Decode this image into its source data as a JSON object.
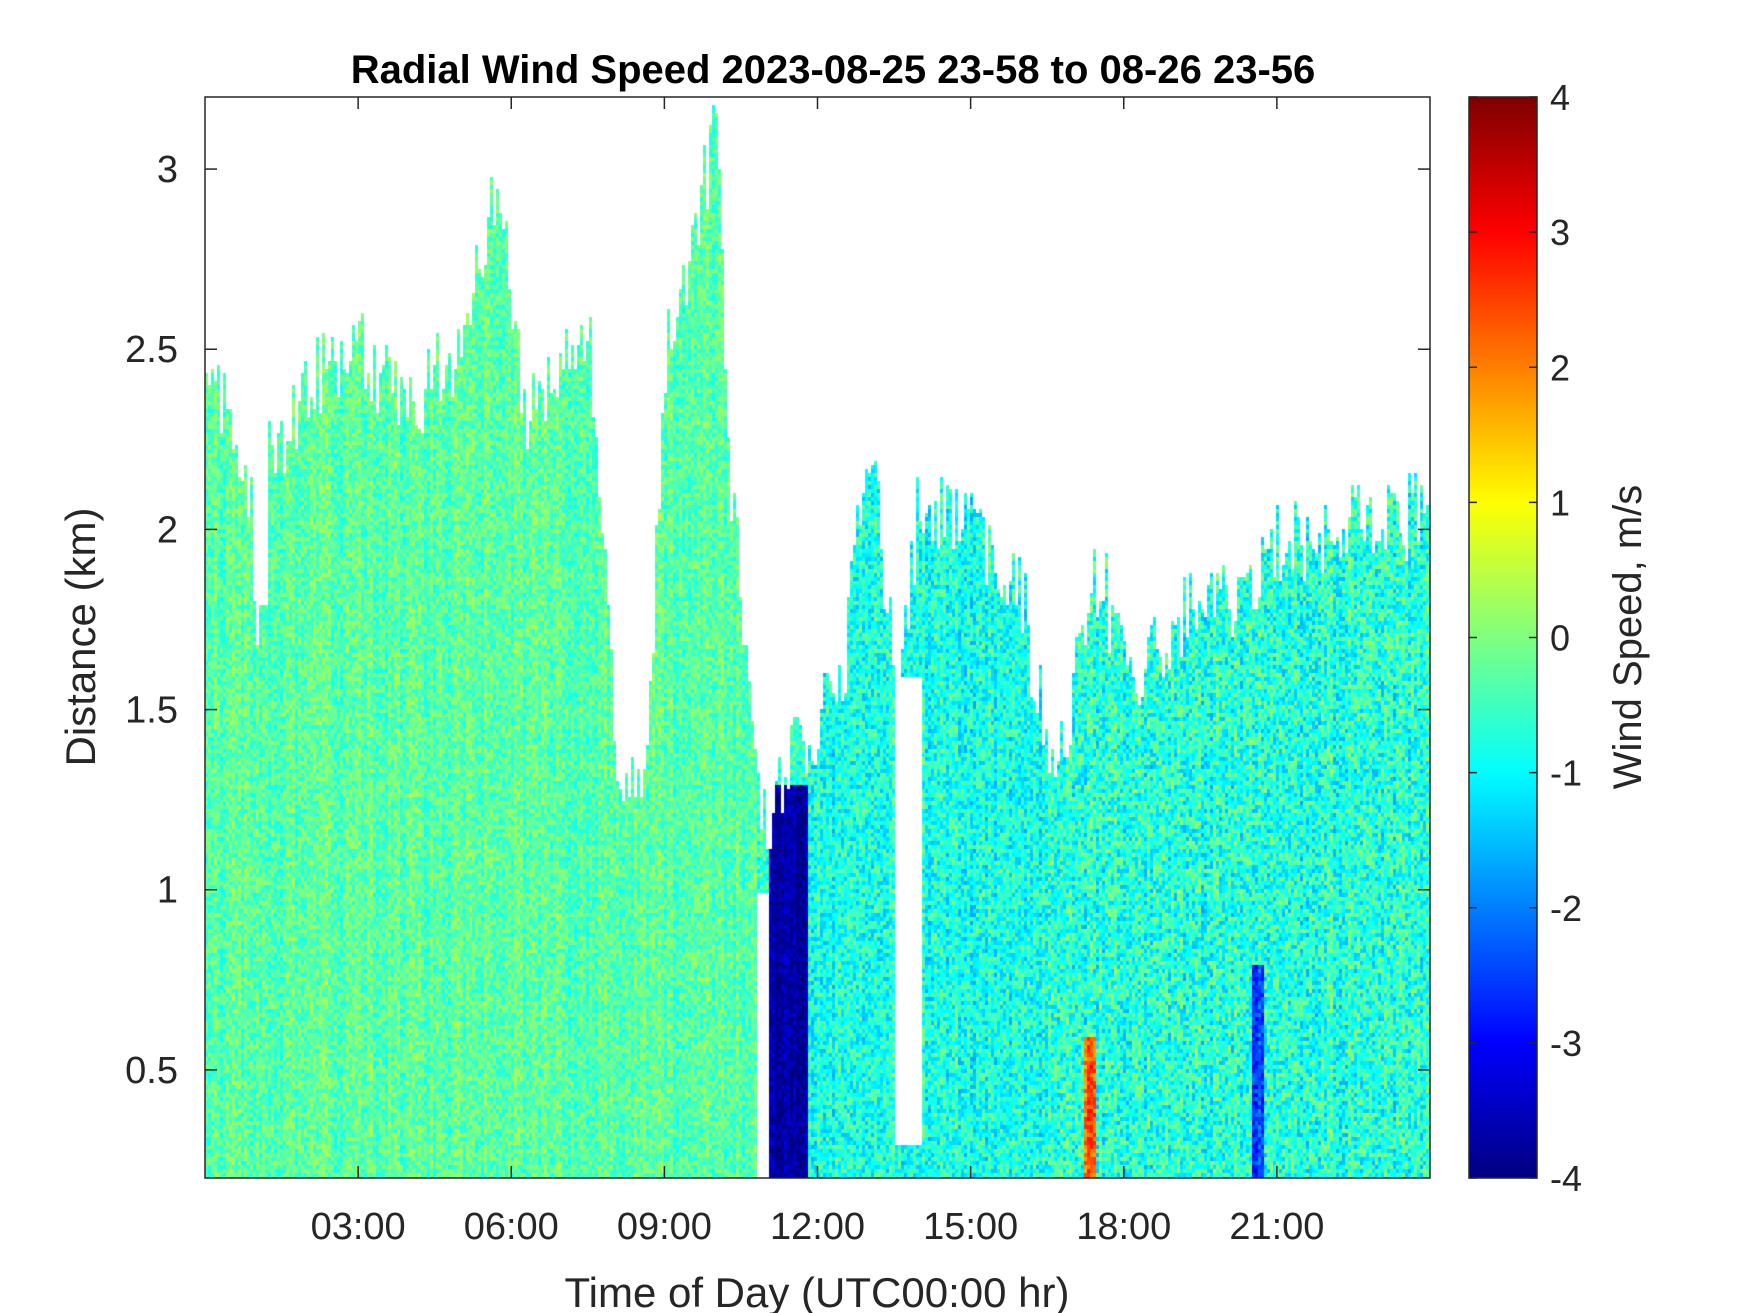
{
  "chart_data": {
    "type": "heatmap",
    "title": "Radial Wind Speed 2023-08-25 23-58 to 08-26 23-56",
    "xlabel": "Time of Day (UTC00:00 hr)",
    "ylabel": "Distance (km)",
    "colorbar_label": "Wind Speed, m/s",
    "xlim_hours": [
      0,
      24
    ],
    "ylim_km": [
      0.2,
      3.2
    ],
    "clim": [
      -4,
      4
    ],
    "colormap": "jet",
    "x_ticks": [
      {
        "value": 3,
        "label": "03:00"
      },
      {
        "value": 6,
        "label": "06:00"
      },
      {
        "value": 9,
        "label": "09:00"
      },
      {
        "value": 12,
        "label": "12:00"
      },
      {
        "value": 15,
        "label": "15:00"
      },
      {
        "value": 18,
        "label": "18:00"
      },
      {
        "value": 21,
        "label": "21:00"
      }
    ],
    "y_ticks": [
      {
        "value": 0.5,
        "label": "0.5"
      },
      {
        "value": 1,
        "label": "1"
      },
      {
        "value": 1.5,
        "label": "1.5"
      },
      {
        "value": 2,
        "label": "2"
      },
      {
        "value": 2.5,
        "label": "2.5"
      },
      {
        "value": 3,
        "label": "3"
      }
    ],
    "colorbar_ticks": [
      {
        "value": 4,
        "label": "4"
      },
      {
        "value": 3,
        "label": "3"
      },
      {
        "value": 2,
        "label": "2"
      },
      {
        "value": 1,
        "label": "1"
      },
      {
        "value": 0,
        "label": "0"
      },
      {
        "value": -1,
        "label": "-1"
      },
      {
        "value": -2,
        "label": "-2"
      },
      {
        "value": -3,
        "label": "-3"
      },
      {
        "value": -4,
        "label": "-4"
      }
    ],
    "data_top_km_by_hour": [
      {
        "hour": 0.0,
        "top": 2.4
      },
      {
        "hour": 0.5,
        "top": 2.3
      },
      {
        "hour": 0.8,
        "top": 2.2
      },
      {
        "hour": 1.0,
        "top": 1.8
      },
      {
        "hour": 1.2,
        "top": 2.2
      },
      {
        "hour": 2.0,
        "top": 2.4
      },
      {
        "hour": 3.0,
        "top": 2.5
      },
      {
        "hour": 4.0,
        "top": 2.35
      },
      {
        "hour": 5.0,
        "top": 2.5
      },
      {
        "hour": 5.8,
        "top": 3.0
      },
      {
        "hour": 6.2,
        "top": 2.3
      },
      {
        "hour": 7.0,
        "top": 2.5
      },
      {
        "hour": 7.5,
        "top": 2.6
      },
      {
        "hour": 8.0,
        "top": 1.4
      },
      {
        "hour": 8.6,
        "top": 1.3
      },
      {
        "hour": 9.0,
        "top": 2.5
      },
      {
        "hour": 9.5,
        "top": 2.8
      },
      {
        "hour": 10.0,
        "top": 3.1
      },
      {
        "hour": 10.3,
        "top": 2.1
      },
      {
        "hour": 10.8,
        "top": 1.3
      },
      {
        "hour": 11.0,
        "top": 1.2
      },
      {
        "hour": 11.8,
        "top": 1.45
      },
      {
        "hour": 12.1,
        "top": 1.5
      },
      {
        "hour": 12.5,
        "top": 1.6
      },
      {
        "hour": 13.0,
        "top": 2.3
      },
      {
        "hour": 13.5,
        "top": 1.6
      },
      {
        "hour": 14.0,
        "top": 2.1
      },
      {
        "hour": 15.0,
        "top": 2.0
      },
      {
        "hour": 16.0,
        "top": 1.8
      },
      {
        "hour": 16.6,
        "top": 1.3
      },
      {
        "hour": 17.5,
        "top": 1.9
      },
      {
        "hour": 18.0,
        "top": 1.6
      },
      {
        "hour": 19.0,
        "top": 1.75
      },
      {
        "hour": 20.0,
        "top": 1.8
      },
      {
        "hour": 21.0,
        "top": 1.95
      },
      {
        "hour": 22.0,
        "top": 2.0
      },
      {
        "hour": 24.0,
        "top": 2.05
      }
    ],
    "data_gaps": [
      {
        "hour_from": 1.0,
        "hour_to": 1.2,
        "km_from": 1.8,
        "km_to": 2.2
      },
      {
        "hour_from": 10.8,
        "hour_to": 11.0,
        "km_from": 0.2,
        "km_to": 1.0
      },
      {
        "hour_from": 13.5,
        "hour_to": 14.0,
        "km_from": 0.3,
        "km_to": 1.6
      }
    ],
    "value_regions": [
      {
        "hour_from": 0,
        "hour_to": 10.8,
        "km_from": 0.2,
        "km_to": 3.2,
        "mean": -0.3,
        "spread": 0.5
      },
      {
        "hour_from": 11.0,
        "hour_to": 11.8,
        "km_from": 0.2,
        "km_to": 1.3,
        "mean": -3.7,
        "spread": 0.4
      },
      {
        "hour_from": 11.8,
        "hour_to": 16.5,
        "km_from": 0.2,
        "km_to": 3.2,
        "mean": -0.8,
        "spread": 0.7
      },
      {
        "hour_from": 16.5,
        "hour_to": 24,
        "km_from": 0.2,
        "km_to": 3.2,
        "mean": -0.7,
        "spread": 0.8
      },
      {
        "hour_from": 17.2,
        "hour_to": 17.4,
        "km_from": 0.2,
        "km_to": 0.6,
        "mean": 2.3,
        "spread": 0.6
      },
      {
        "hour_from": 20.5,
        "hour_to": 20.7,
        "km_from": 0.2,
        "km_to": 0.8,
        "mean": -2.5,
        "spread": 0.5
      }
    ]
  }
}
